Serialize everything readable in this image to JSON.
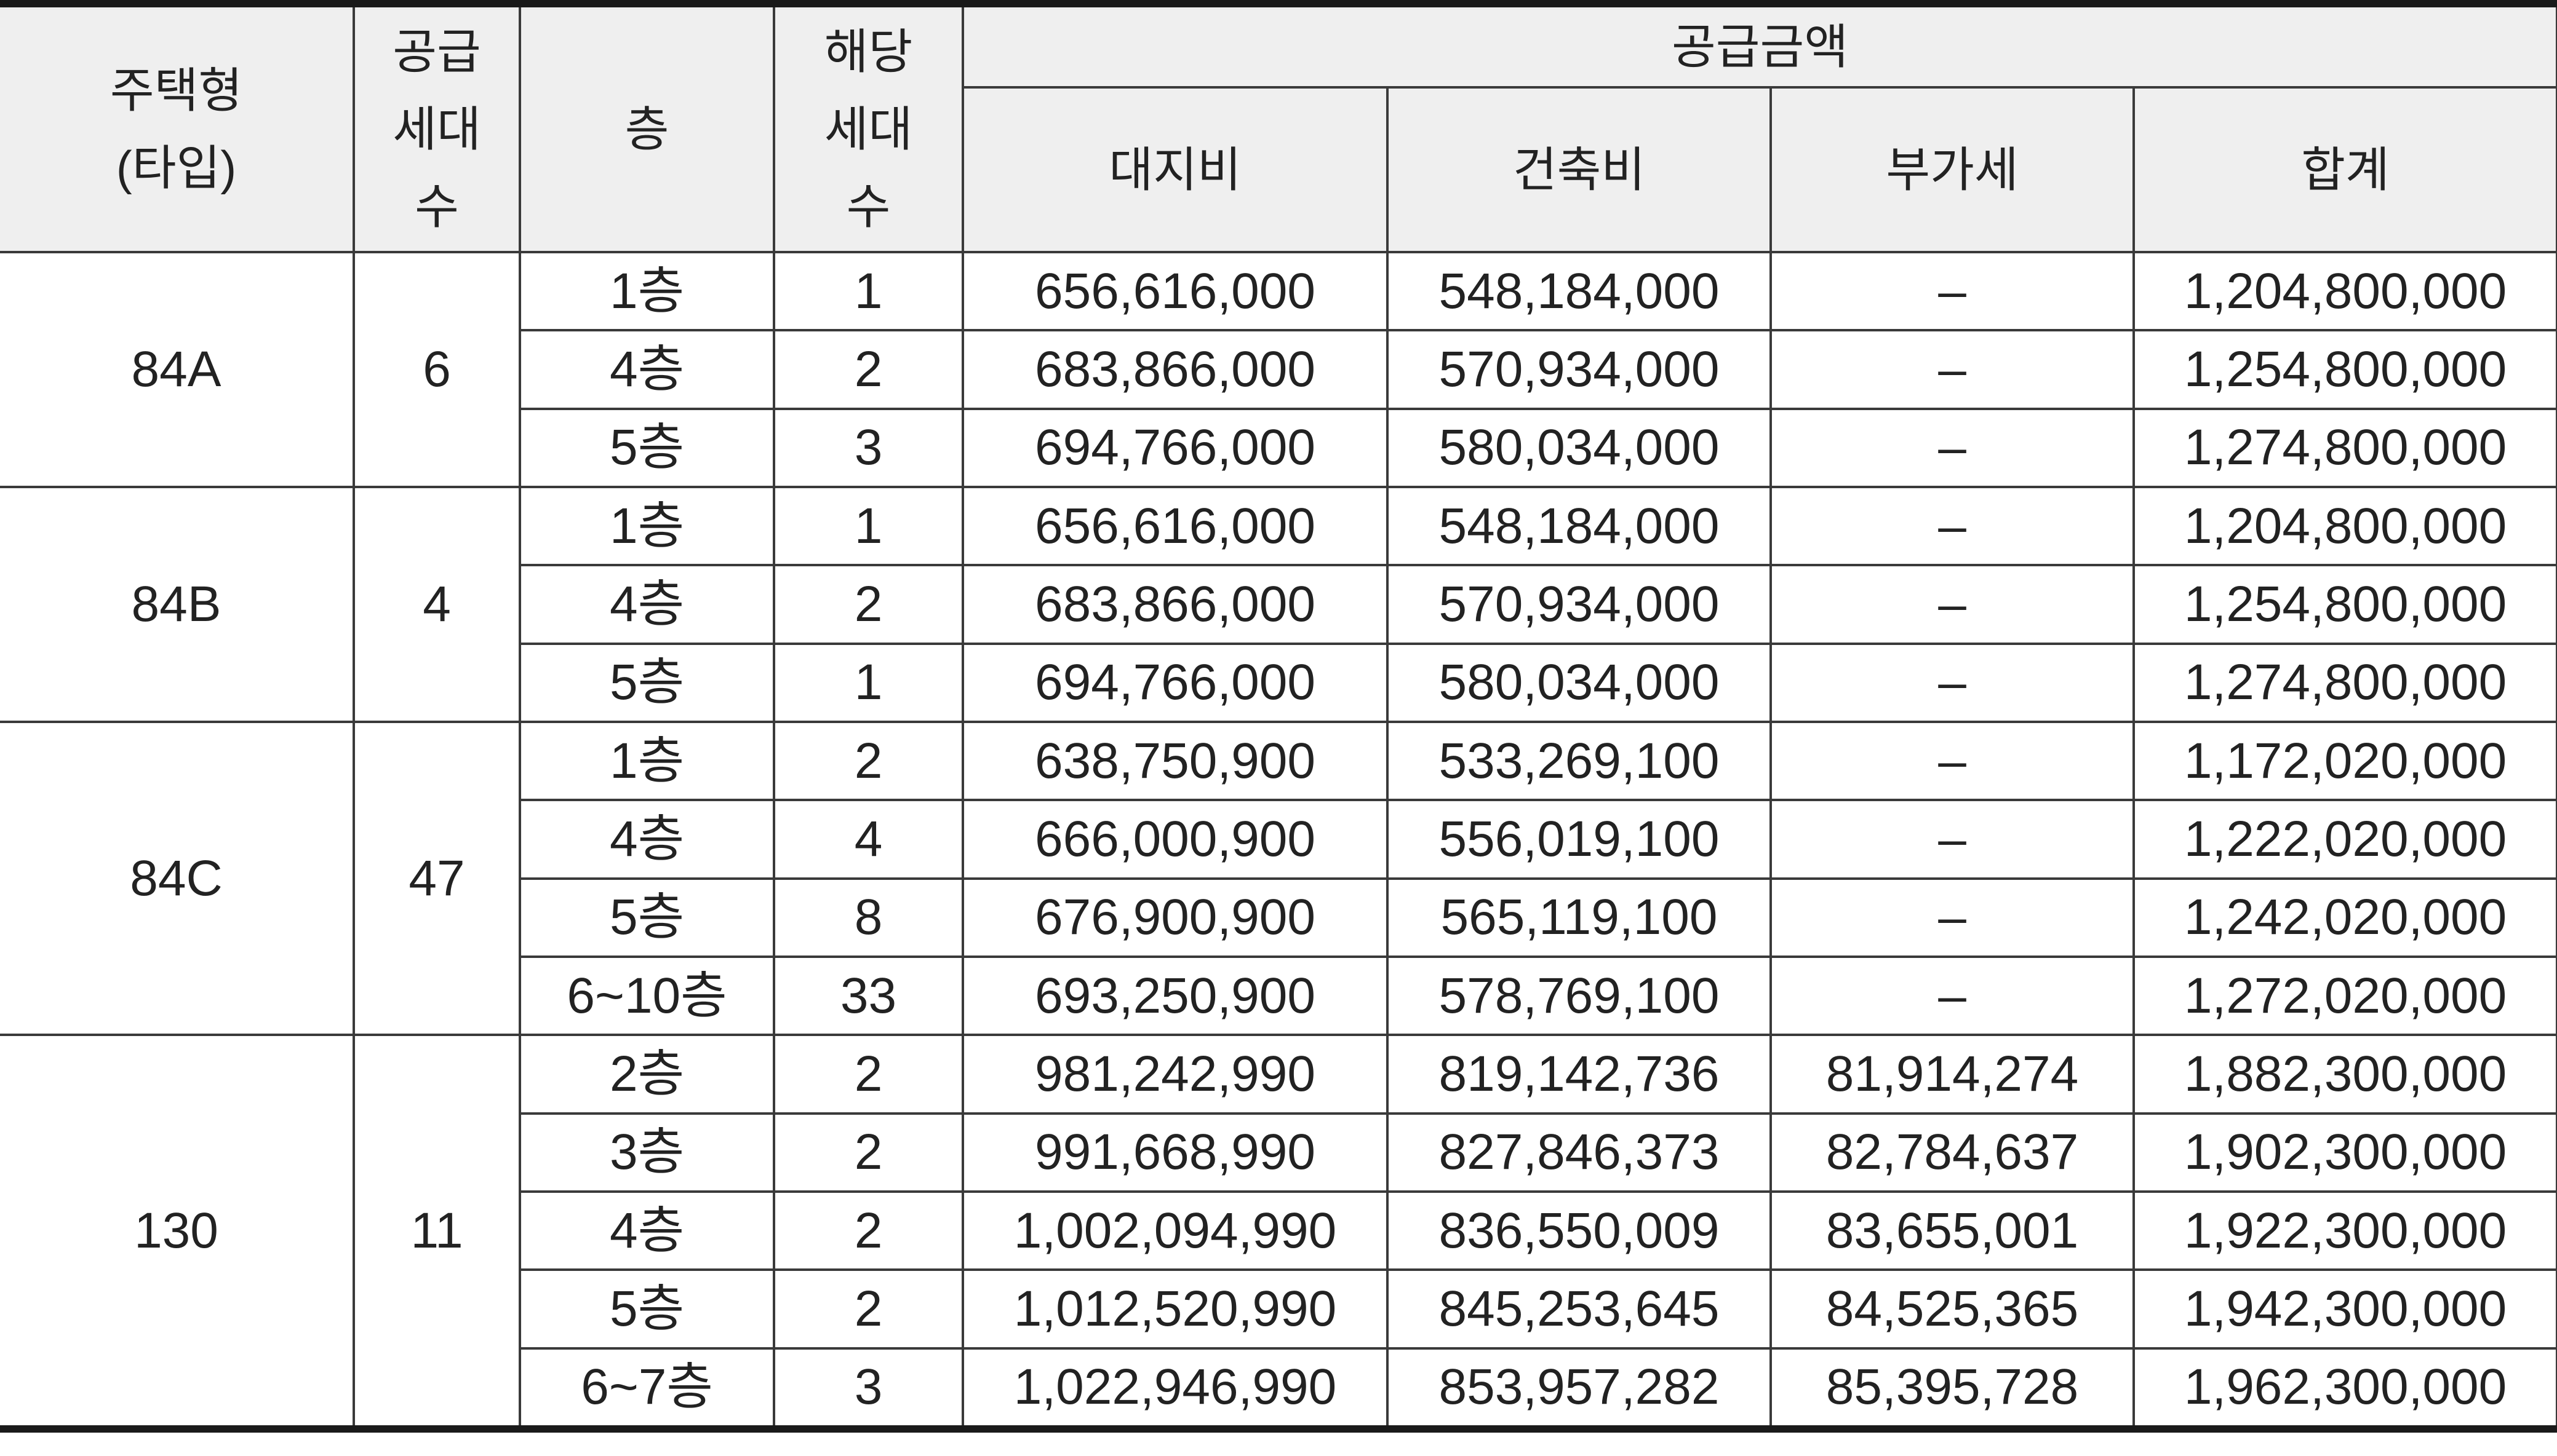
{
  "header": {
    "type_line1": "주택형",
    "type_line2": "(타입)",
    "supply_line1": "공급",
    "supply_line2": "세대",
    "supply_line3": "수",
    "floor": "층",
    "units_line1": "해당",
    "units_line2": "세대",
    "units_line3": "수",
    "amount": "공급금액",
    "land": "대지비",
    "building": "건축비",
    "vat": "부가세",
    "total": "합계"
  },
  "groups": [
    {
      "type": "84A",
      "supply": "6",
      "rows": [
        {
          "floor": "1층",
          "units": "1",
          "land": "656,616,000",
          "building": "548,184,000",
          "vat": "–",
          "total": "1,204,800,000"
        },
        {
          "floor": "4층",
          "units": "2",
          "land": "683,866,000",
          "building": "570,934,000",
          "vat": "–",
          "total": "1,254,800,000"
        },
        {
          "floor": "5층",
          "units": "3",
          "land": "694,766,000",
          "building": "580,034,000",
          "vat": "–",
          "total": "1,274,800,000"
        }
      ]
    },
    {
      "type": "84B",
      "supply": "4",
      "rows": [
        {
          "floor": "1층",
          "units": "1",
          "land": "656,616,000",
          "building": "548,184,000",
          "vat": "–",
          "total": "1,204,800,000"
        },
        {
          "floor": "4층",
          "units": "2",
          "land": "683,866,000",
          "building": "570,934,000",
          "vat": "–",
          "total": "1,254,800,000"
        },
        {
          "floor": "5층",
          "units": "1",
          "land": "694,766,000",
          "building": "580,034,000",
          "vat": "–",
          "total": "1,274,800,000"
        }
      ]
    },
    {
      "type": "84C",
      "supply": "47",
      "rows": [
        {
          "floor": "1층",
          "units": "2",
          "land": "638,750,900",
          "building": "533,269,100",
          "vat": "–",
          "total": "1,172,020,000"
        },
        {
          "floor": "4층",
          "units": "4",
          "land": "666,000,900",
          "building": "556,019,100",
          "vat": "–",
          "total": "1,222,020,000"
        },
        {
          "floor": "5층",
          "units": "8",
          "land": "676,900,900",
          "building": "565,119,100",
          "vat": "–",
          "total": "1,242,020,000"
        },
        {
          "floor": "6~10층",
          "units": "33",
          "land": "693,250,900",
          "building": "578,769,100",
          "vat": "–",
          "total": "1,272,020,000"
        }
      ]
    },
    {
      "type": "130",
      "supply": "11",
      "rows": [
        {
          "floor": "2층",
          "units": "2",
          "land": "981,242,990",
          "building": "819,142,736",
          "vat": "81,914,274",
          "total": "1,882,300,000"
        },
        {
          "floor": "3층",
          "units": "2",
          "land": "991,668,990",
          "building": "827,846,373",
          "vat": "82,784,637",
          "total": "1,902,300,000"
        },
        {
          "floor": "4층",
          "units": "2",
          "land": "1,002,094,990",
          "building": "836,550,009",
          "vat": "83,655,001",
          "total": "1,922,300,000"
        },
        {
          "floor": "5층",
          "units": "2",
          "land": "1,012,520,990",
          "building": "845,253,645",
          "vat": "84,525,365",
          "total": "1,942,300,000"
        },
        {
          "floor": "6~7층",
          "units": "3",
          "land": "1,022,946,990",
          "building": "853,957,282",
          "vat": "85,395,728",
          "total": "1,962,300,000"
        }
      ]
    }
  ]
}
